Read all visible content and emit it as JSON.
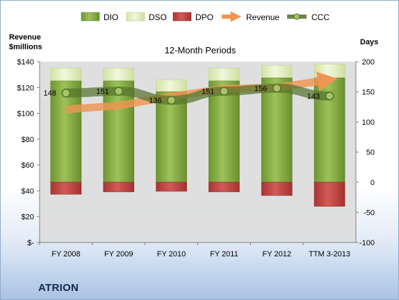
{
  "company": "ATRION",
  "chart_data": {
    "type": "bar",
    "title": "12-Month Periods",
    "left_axis_title": [
      "Revenue",
      "$millions"
    ],
    "right_axis_title": "Days",
    "categories": [
      "FY 2008",
      "FY 2009",
      "FY 2010",
      "FY 2011",
      "FY 2012",
      "TTM 3-2013"
    ],
    "left_ylim": [
      0,
      140
    ],
    "left_ticks": [
      "$-",
      "$20",
      "$40",
      "$60",
      "$80",
      "$100",
      "$120",
      "$140"
    ],
    "right_ylim": [
      -100,
      200
    ],
    "right_ticks": [
      "-100",
      "-50",
      "0",
      "50",
      "100",
      "150",
      "200"
    ],
    "legend": {
      "placement": "top",
      "entries": [
        "DIO",
        "DSO",
        "DPO",
        "Revenue",
        "CCC"
      ]
    },
    "series": [
      {
        "name": "DIO",
        "axis": "right",
        "values": [
          168,
          168,
          150,
          168,
          173,
          173
        ]
      },
      {
        "name": "DSO",
        "axis": "right",
        "values": [
          21,
          21,
          20,
          21,
          21,
          23
        ]
      },
      {
        "name": "DPO",
        "axis": "right",
        "values": [
          -20,
          -16,
          -15,
          -16,
          -22,
          -40
        ]
      },
      {
        "name": "Revenue",
        "axis": "left",
        "values": [
          103,
          106,
          113,
          119,
          120,
          126
        ]
      },
      {
        "name": "CCC",
        "axis": "right",
        "values": [
          148,
          151,
          136,
          151,
          156,
          143
        ]
      }
    ],
    "data_labels": [
      "148",
      "151",
      "136",
      "151",
      "156",
      "143"
    ],
    "colors": {
      "DIO": "#8cb447",
      "DSO": "#e4efc2",
      "DPO": "#c74948",
      "Revenue": "#f0a265",
      "CCC": "#5a7a33"
    },
    "grid": false
  }
}
